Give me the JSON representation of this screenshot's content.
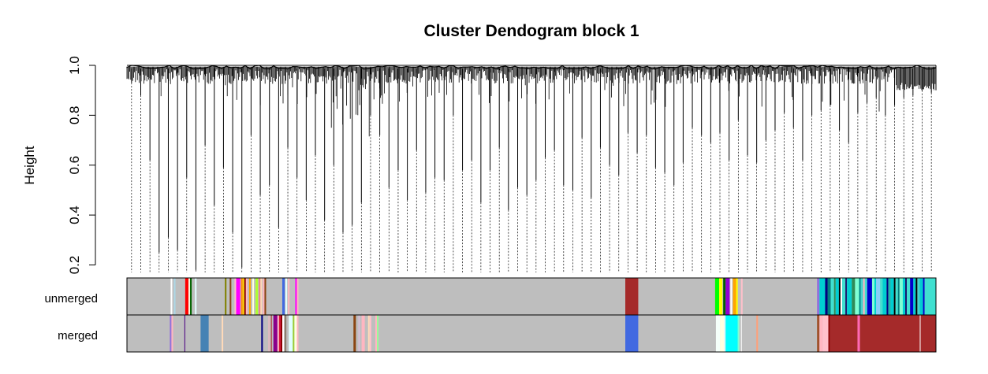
{
  "chart_data": {
    "type": "dendrogram",
    "title": "Cluster Dendogram block 1",
    "ylabel": "Height",
    "xlabel": "",
    "ylim": [
      0.17,
      1.0
    ],
    "yticks": [
      "0.2",
      "0.4",
      "0.6",
      "0.8",
      "1.0"
    ],
    "ytick_values": [
      0.2,
      0.4,
      0.6,
      0.8,
      1.0
    ],
    "x_range": [
      0,
      1000
    ],
    "branch_color": "#000000",
    "guide_line_style": "dotted",
    "leaf_merge_heights": [
      0.93,
      0.88,
      0.62,
      0.25,
      0.31,
      0.26,
      0.55,
      0.18,
      0.68,
      0.44,
      0.59,
      0.33,
      0.19,
      0.72,
      0.48,
      0.52,
      0.35,
      0.67,
      0.55,
      0.46,
      0.64,
      0.38,
      0.6,
      0.33,
      0.36,
      0.45,
      0.8,
      0.72,
      0.51,
      0.58,
      0.46,
      0.66,
      0.49,
      0.55,
      0.54,
      0.8,
      0.58,
      0.62,
      0.45,
      0.58,
      0.67,
      0.42,
      0.51,
      0.48,
      0.54,
      0.63,
      0.66,
      0.52,
      0.5,
      0.71,
      0.47,
      0.67,
      0.6,
      0.56,
      0.73,
      0.65,
      0.72,
      0.59,
      0.57,
      0.52,
      0.61,
      0.75,
      0.72,
      0.69,
      0.73,
      0.62,
      0.78,
      0.64,
      0.61,
      0.7,
      0.74,
      0.81,
      0.75,
      0.62,
      0.8,
      0.82,
      0.84,
      0.74,
      0.69,
      0.81,
      0.85,
      0.87,
      0.8,
      0.84,
      0.87,
      0.88,
      0.9,
      0.89
    ],
    "top_node_height": 1.0,
    "color_rows": [
      {
        "name": "unmerged",
        "background": "#bebebe",
        "segments": [
          {
            "x0": 54,
            "x1": 56,
            "color": "#ffffff"
          },
          {
            "x0": 58,
            "x1": 60,
            "color": "#add8e6"
          },
          {
            "x0": 72,
            "x1": 76,
            "color": "#ff0000"
          },
          {
            "x0": 76,
            "x1": 78,
            "color": "#f5f5dc"
          },
          {
            "x0": 78,
            "x1": 80,
            "color": "#006400"
          },
          {
            "x0": 84,
            "x1": 86,
            "color": "#e0ffff"
          },
          {
            "x0": 121,
            "x1": 123,
            "color": "#808000"
          },
          {
            "x0": 127,
            "x1": 129,
            "color": "#8b4513"
          },
          {
            "x0": 133,
            "x1": 135,
            "color": "#ffc0cb"
          },
          {
            "x0": 135,
            "x1": 140,
            "color": "#ff00ff"
          },
          {
            "x0": 141,
            "x1": 143,
            "color": "#ff8c00"
          },
          {
            "x0": 143,
            "x1": 145,
            "color": "#ffd700"
          },
          {
            "x0": 145,
            "x1": 147,
            "color": "#8b0000"
          },
          {
            "x0": 147,
            "x1": 149,
            "color": "#ffb6c1"
          },
          {
            "x0": 151,
            "x1": 153,
            "color": "#ffa500"
          },
          {
            "x0": 155,
            "x1": 157,
            "color": "#ffffe0"
          },
          {
            "x0": 159,
            "x1": 162,
            "color": "#adff2f"
          },
          {
            "x0": 163,
            "x1": 165,
            "color": "#f08080"
          },
          {
            "x0": 165,
            "x1": 167,
            "color": "#ffdab9"
          },
          {
            "x0": 168,
            "x1": 170,
            "color": "#ffb6c1"
          },
          {
            "x0": 170,
            "x1": 172,
            "color": "#8b4513"
          },
          {
            "x0": 192,
            "x1": 195,
            "color": "#4169e1"
          },
          {
            "x0": 196,
            "x1": 198,
            "color": "#e0ffff"
          },
          {
            "x0": 199,
            "x1": 201,
            "color": "#ffb6c1"
          },
          {
            "x0": 208,
            "x1": 210,
            "color": "#ff00ff"
          },
          {
            "x0": 210,
            "x1": 212,
            "color": "#ffb6c1"
          },
          {
            "x0": 616,
            "x1": 632,
            "color": "#a52a2a"
          },
          {
            "x0": 727,
            "x1": 732,
            "color": "#00ff00"
          },
          {
            "x0": 732,
            "x1": 736,
            "color": "#ffff00"
          },
          {
            "x0": 737,
            "x1": 740,
            "color": "#006400"
          },
          {
            "x0": 740,
            "x1": 745,
            "color": "#9400d3"
          },
          {
            "x0": 746,
            "x1": 748,
            "color": "#ffffff"
          },
          {
            "x0": 749,
            "x1": 753,
            "color": "#ffa500"
          },
          {
            "x0": 753,
            "x1": 755,
            "color": "#ffff00"
          },
          {
            "x0": 759,
            "x1": 761,
            "color": "#ffc0cb"
          },
          {
            "x0": 853,
            "x1": 856,
            "color": "#9370db"
          },
          {
            "x0": 856,
            "x1": 863,
            "color": "#00ced1"
          },
          {
            "x0": 863,
            "x1": 866,
            "color": "#000080"
          },
          {
            "x0": 866,
            "x1": 870,
            "color": "#008080"
          },
          {
            "x0": 870,
            "x1": 874,
            "color": "#40e0d0"
          },
          {
            "x0": 874,
            "x1": 876,
            "color": "#2e8b57"
          },
          {
            "x0": 876,
            "x1": 880,
            "color": "#00ced1"
          },
          {
            "x0": 880,
            "x1": 882,
            "color": "#000000"
          },
          {
            "x0": 882,
            "x1": 884,
            "color": "#ffffff"
          },
          {
            "x0": 884,
            "x1": 888,
            "color": "#40e0d0"
          },
          {
            "x0": 888,
            "x1": 890,
            "color": "#191970"
          },
          {
            "x0": 890,
            "x1": 896,
            "color": "#00ced1"
          },
          {
            "x0": 896,
            "x1": 900,
            "color": "#2e8b57"
          },
          {
            "x0": 900,
            "x1": 905,
            "color": "#7fffd4"
          },
          {
            "x0": 905,
            "x1": 907,
            "color": "#008b8b"
          },
          {
            "x0": 907,
            "x1": 910,
            "color": "#48d1cc"
          },
          {
            "x0": 910,
            "x1": 912,
            "color": "#ffb6c1"
          },
          {
            "x0": 912,
            "x1": 915,
            "color": "#40e0d0"
          },
          {
            "x0": 915,
            "x1": 921,
            "color": "#0000cd"
          },
          {
            "x0": 921,
            "x1": 924,
            "color": "#7fffd4"
          },
          {
            "x0": 924,
            "x1": 926,
            "color": "#00ced1"
          },
          {
            "x0": 926,
            "x1": 931,
            "color": "#87cefa"
          },
          {
            "x0": 931,
            "x1": 934,
            "color": "#40e0d0"
          },
          {
            "x0": 934,
            "x1": 939,
            "color": "#00ced1"
          },
          {
            "x0": 939,
            "x1": 941,
            "color": "#000080"
          },
          {
            "x0": 941,
            "x1": 944,
            "color": "#20b2aa"
          },
          {
            "x0": 944,
            "x1": 948,
            "color": "#00ced1"
          },
          {
            "x0": 948,
            "x1": 950,
            "color": "#000000"
          },
          {
            "x0": 950,
            "x1": 953,
            "color": "#40e0d0"
          },
          {
            "x0": 953,
            "x1": 955,
            "color": "#008080"
          },
          {
            "x0": 955,
            "x1": 959,
            "color": "#7fffd4"
          },
          {
            "x0": 959,
            "x1": 962,
            "color": "#00ced1"
          },
          {
            "x0": 962,
            "x1": 964,
            "color": "#191970"
          },
          {
            "x0": 964,
            "x1": 968,
            "color": "#40e0d0"
          },
          {
            "x0": 968,
            "x1": 972,
            "color": "#0000cd"
          },
          {
            "x0": 972,
            "x1": 975,
            "color": "#00ced1"
          },
          {
            "x0": 975,
            "x1": 977,
            "color": "#000000"
          },
          {
            "x0": 977,
            "x1": 980,
            "color": "#48d1cc"
          },
          {
            "x0": 980,
            "x1": 984,
            "color": "#00ced1"
          },
          {
            "x0": 984,
            "x1": 986,
            "color": "#0000cd"
          },
          {
            "x0": 986,
            "x1": 1000,
            "color": "#40e0d0"
          }
        ]
      },
      {
        "name": "merged",
        "background": "#bebebe",
        "segments": [
          {
            "x0": 53,
            "x1": 55,
            "color": "#9370db"
          },
          {
            "x0": 55,
            "x1": 57,
            "color": "#ffb6c1"
          },
          {
            "x0": 71,
            "x1": 72,
            "color": "#4b0082"
          },
          {
            "x0": 91,
            "x1": 101,
            "color": "#4682b4"
          },
          {
            "x0": 117,
            "x1": 119,
            "color": "#ffdab9"
          },
          {
            "x0": 166,
            "x1": 168,
            "color": "#000080"
          },
          {
            "x0": 175,
            "x1": 176,
            "color": "#ffb6c1"
          },
          {
            "x0": 178,
            "x1": 179,
            "color": "#b22222"
          },
          {
            "x0": 181,
            "x1": 186,
            "color": "#8b008b"
          },
          {
            "x0": 186,
            "x1": 188,
            "color": "#ffb6c1"
          },
          {
            "x0": 188,
            "x1": 190,
            "color": "#dc143c"
          },
          {
            "x0": 190,
            "x1": 192,
            "color": "#8b0000"
          },
          {
            "x0": 192,
            "x1": 194,
            "color": "#ffffff"
          },
          {
            "x0": 195,
            "x1": 197,
            "color": "#8b7d6b"
          },
          {
            "x0": 200,
            "x1": 205,
            "color": "#e0ffff"
          },
          {
            "x0": 205,
            "x1": 207,
            "color": "#9acd32"
          },
          {
            "x0": 207,
            "x1": 210,
            "color": "#ffffe0"
          },
          {
            "x0": 210,
            "x1": 212,
            "color": "#ffb6c1"
          },
          {
            "x0": 280,
            "x1": 283,
            "color": "#8b4513"
          },
          {
            "x0": 286,
            "x1": 288,
            "color": "#d8bfd8"
          },
          {
            "x0": 290,
            "x1": 294,
            "color": "#ffb6c1"
          },
          {
            "x0": 298,
            "x1": 300,
            "color": "#ffdab9"
          },
          {
            "x0": 300,
            "x1": 302,
            "color": "#ffc0cb"
          },
          {
            "x0": 307,
            "x1": 309,
            "color": "#ffb6c1"
          },
          {
            "x0": 309,
            "x1": 311,
            "color": "#98fb98"
          },
          {
            "x0": 616,
            "x1": 632,
            "color": "#4169e1"
          },
          {
            "x0": 728,
            "x1": 733,
            "color": "#f5fffa"
          },
          {
            "x0": 733,
            "x1": 738,
            "color": "#ffffe0"
          },
          {
            "x0": 738,
            "x1": 740,
            "color": "#e0ffff"
          },
          {
            "x0": 740,
            "x1": 755,
            "color": "#00ffff"
          },
          {
            "x0": 755,
            "x1": 757,
            "color": "#7fffd4"
          },
          {
            "x0": 759,
            "x1": 760,
            "color": "#ffffff"
          },
          {
            "x0": 778,
            "x1": 780,
            "color": "#ffa07a"
          },
          {
            "x0": 853,
            "x1": 856,
            "color": "#a0522d"
          },
          {
            "x0": 856,
            "x1": 860,
            "color": "#ffb6c1"
          },
          {
            "x0": 860,
            "x1": 867,
            "color": "#ffc0cb"
          },
          {
            "x0": 867,
            "x1": 869,
            "color": "#8b0000"
          },
          {
            "x0": 869,
            "x1": 903,
            "color": "#a52a2a"
          },
          {
            "x0": 903,
            "x1": 906,
            "color": "#ff69b4"
          },
          {
            "x0": 906,
            "x1": 980,
            "color": "#a52a2a"
          },
          {
            "x0": 980,
            "x1": 981,
            "color": "#ffffff"
          },
          {
            "x0": 981,
            "x1": 1000,
            "color": "#a52a2a"
          }
        ]
      }
    ]
  }
}
